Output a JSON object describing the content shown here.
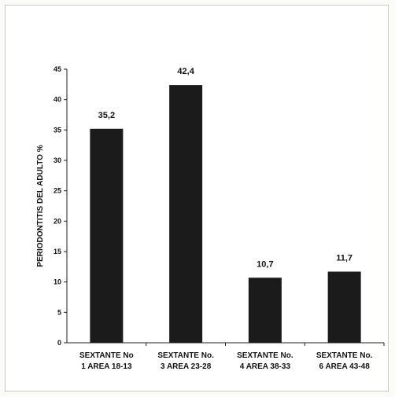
{
  "chart_data": {
    "type": "bar",
    "title": "",
    "xlabel": "",
    "ylabel": "PERIODONTITIS DEL ADULTO %",
    "ylim": [
      0,
      45
    ],
    "yticks": [
      "0",
      "5",
      "10",
      "15",
      "20",
      "25",
      "30",
      "35",
      "40",
      "45"
    ],
    "categories": [
      [
        "SEXTANTE No",
        "1 AREA 18-13"
      ],
      [
        "SEXTANTE No.",
        "3 AREA 23-28"
      ],
      [
        "SEXTANTE No.",
        "4 AREA 38-33"
      ],
      [
        "SEXTANTE No.",
        "6 AREA 43-48"
      ]
    ],
    "values": [
      35.2,
      42.4,
      10.7,
      11.7
    ],
    "data_labels": [
      "35,2",
      "42,4",
      "10,7",
      "11,7"
    ],
    "grid": false,
    "bar_color": "#1b1b1b"
  }
}
